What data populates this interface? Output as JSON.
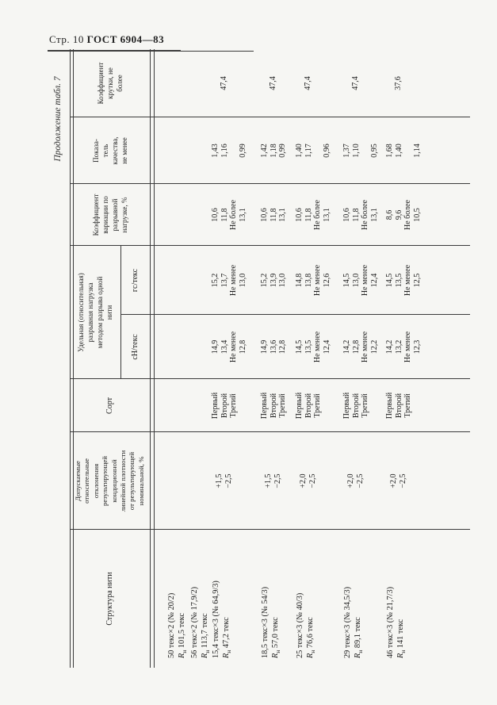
{
  "page": {
    "header_left": "Стр. 10",
    "header_right": "ГОСТ 6904—83",
    "continuation_label": "Продолжение табл. 7"
  },
  "table": {
    "headers": {
      "structure": "Структура нити",
      "deviation_lines": [
        "Допускаемые",
        "относительные",
        "отклонения",
        "результирующей",
        "кондиционной",
        "линейной плотности",
        "от результирующей",
        "номинальной, %"
      ],
      "sort": "Сорт",
      "load_lines": [
        "Удельная (относительная)",
        "разрывная нагрузка",
        "методом разрыва одной",
        "нити"
      ],
      "load_sub_cn": "сН/текс",
      "load_sub_gs": "гс/текс",
      "variation_lines": [
        "Коэффициент",
        "вариации по",
        "разрывной",
        "нагрузке, %"
      ],
      "quality_lines": [
        "Показа-",
        "тель",
        "качества,",
        "не менее"
      ],
      "twist_lines": [
        "Коэффициент",
        "крутки, не",
        "более"
      ]
    },
    "rows": [
      {
        "structure_lines": [
          "50 текс×2 (№ 20/2)",
          "Rн 101,5 текс",
          "56 текс×2 (№ 17,9/2)",
          "Rн 113,7 текс"
        ],
        "deviation": [],
        "sort": [],
        "load_cn": [],
        "load_gs": [],
        "variation": [],
        "quality": [],
        "twist": ""
      },
      {
        "structure_lines": [
          "15,4 текс×3 (№ 64,9/3)",
          "Rн 47,2 текс"
        ],
        "deviation": [
          "+1,5",
          "−2,5"
        ],
        "sort": [
          "Первый",
          "Второй",
          "Третий"
        ],
        "load_cn": [
          "14,9",
          "13,4",
          "Не менее",
          "12,8"
        ],
        "load_gs": [
          "15,2",
          "13,7",
          "Не менее",
          "13,0"
        ],
        "variation": [
          "10,6",
          "11,8",
          "Не более",
          "13,1"
        ],
        "quality": [
          "1,43",
          "1,16",
          "",
          "0,99"
        ],
        "twist": "47,4"
      },
      {
        "structure_lines": [
          "18,5 текс×3 (№ 54/3)",
          "Rн 57,0 текс"
        ],
        "deviation": [
          "+1,5",
          "−2,5"
        ],
        "sort": [
          "Первый",
          "Второй",
          "Третий"
        ],
        "load_cn": [
          "14,9",
          "13,6",
          "12,8"
        ],
        "load_gs": [
          "15,2",
          "13,9",
          "13,0"
        ],
        "variation": [
          "10,6",
          "11,8",
          "13,1"
        ],
        "quality": [
          "1,42",
          "1,18",
          "0,99"
        ],
        "twist": "47,4"
      },
      {
        "structure_lines": [
          "25 текс×3 (№ 40/3)",
          "Rн 76,6 текс"
        ],
        "deviation": [
          "+2,0",
          "−2,5"
        ],
        "sort": [
          "Первый",
          "Второй",
          "Третий"
        ],
        "load_cn": [
          "14,5",
          "13,5",
          "Не менее",
          "12,4"
        ],
        "load_gs": [
          "14,8",
          "13,8",
          "Не менее",
          "12,6"
        ],
        "variation": [
          "10,6",
          "11,8",
          "Не более",
          "13,1"
        ],
        "quality": [
          "1,40",
          "1,17",
          "",
          "0,96"
        ],
        "twist": "47,4"
      },
      {
        "structure_lines": [
          "29 текс×3 (№ 34,5/3)",
          "Rн 89,1 текс"
        ],
        "deviation": [
          "+2,0",
          "−2,5"
        ],
        "sort": [
          "Первый",
          "Второй",
          "Третий"
        ],
        "load_cn": [
          "14,2",
          "12,8",
          "Не менее",
          "12,2"
        ],
        "load_gs": [
          "14,5",
          "13,0",
          "Не менее",
          "12,4"
        ],
        "variation": [
          "10,6",
          "11,8",
          "Не более",
          "13,1"
        ],
        "quality": [
          "1,37",
          "1,10",
          "",
          "0,95"
        ],
        "twist": "47,4"
      },
      {
        "structure_lines": [
          "46 текс×3 (№ 21,7/3)",
          "Rн 141 текс"
        ],
        "deviation": [
          "+2,0",
          "−2,5"
        ],
        "sort": [
          "Первый",
          "Второй",
          "Третий"
        ],
        "load_cn": [
          "14,2",
          "13,2",
          "Не менее",
          "12,3"
        ],
        "load_gs": [
          "14,5",
          "13,5",
          "Не менее",
          "12,5"
        ],
        "variation": [
          "8,6",
          "9,6",
          "Не более",
          "10,5"
        ],
        "quality": [
          "1,68",
          "1,40",
          "",
          "1,14"
        ],
        "twist": "37,6"
      }
    ]
  }
}
